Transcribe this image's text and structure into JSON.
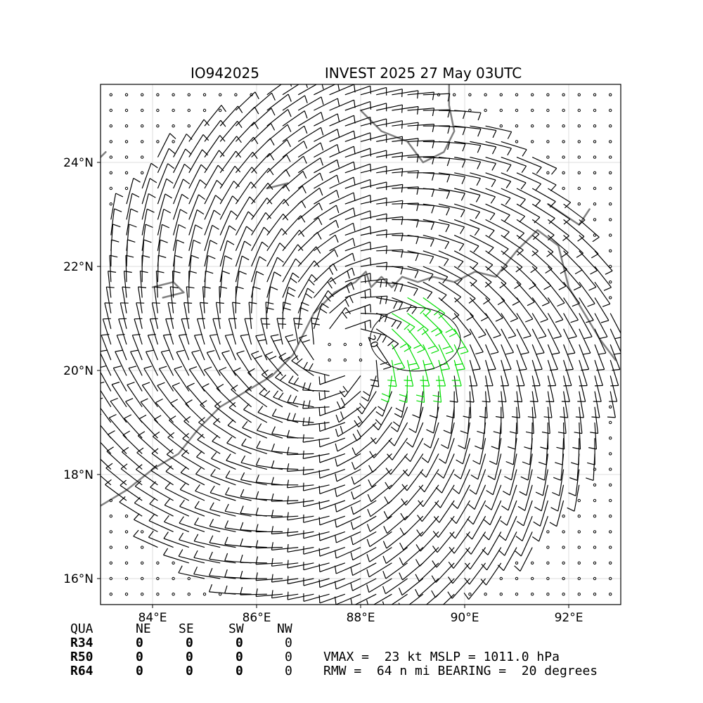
{
  "header": {
    "storm_id": "IO942025",
    "storm_title": "INVEST 2025 27 May 03UTC"
  },
  "chart_data": {
    "type": "wind-barb-map",
    "lon_range": [
      83.0,
      93.0
    ],
    "lat_range": [
      15.5,
      25.5
    ],
    "x_ticks": [
      {
        "value": 84,
        "label": "84°E"
      },
      {
        "value": 86,
        "label": "86°E"
      },
      {
        "value": 88,
        "label": "88°E"
      },
      {
        "value": 90,
        "label": "90°E"
      },
      {
        "value": 92,
        "label": "92°E"
      }
    ],
    "y_ticks": [
      {
        "value": 16,
        "label": "16°N"
      },
      {
        "value": 18,
        "label": "18°N"
      },
      {
        "value": 20,
        "label": "20°N"
      },
      {
        "value": 22,
        "label": "22°N"
      },
      {
        "value": 24,
        "label": "24°N"
      }
    ],
    "grid": true,
    "circulation_center": {
      "lon": 87.7,
      "lat": 20.35
    },
    "wind_field_extent_deg": 5.2,
    "barb_spacing_deg": 0.3,
    "max_wind_kt": 23,
    "contour": {
      "label": "20",
      "center": {
        "lon": 89.05,
        "lat": 20.6
      },
      "radius_deg": 0.85
    },
    "colors": {
      "barb": "#000000",
      "strong_barb": "#00dd00",
      "coastline": "#808080",
      "grid": "#dddddd"
    },
    "coastlines": [
      [
        [
          83.0,
          17.4
        ],
        [
          83.5,
          17.7
        ],
        [
          84.0,
          18.1
        ],
        [
          84.5,
          18.4
        ],
        [
          84.9,
          18.9
        ],
        [
          85.3,
          19.3
        ],
        [
          85.8,
          19.6
        ],
        [
          86.3,
          19.9
        ],
        [
          86.7,
          20.3
        ],
        [
          86.9,
          20.7
        ],
        [
          87.1,
          21.1
        ],
        [
          87.5,
          21.5
        ],
        [
          87.9,
          21.7
        ],
        [
          88.1,
          21.9
        ],
        [
          88.2,
          21.6
        ],
        [
          88.4,
          21.8
        ],
        [
          88.6,
          21.6
        ],
        [
          88.8,
          21.8
        ],
        [
          89.1,
          21.7
        ],
        [
          89.4,
          21.8
        ],
        [
          89.8,
          21.7
        ],
        [
          90.2,
          21.9
        ],
        [
          90.6,
          21.8
        ],
        [
          91.0,
          22.3
        ],
        [
          91.4,
          22.7
        ],
        [
          91.8,
          22.4
        ],
        [
          92.0,
          21.6
        ],
        [
          92.3,
          21.1
        ],
        [
          92.6,
          20.6
        ],
        [
          92.9,
          20.2
        ]
      ],
      [
        [
          88.0,
          25.0
        ],
        [
          88.4,
          24.6
        ],
        [
          88.9,
          24.4
        ],
        [
          89.2,
          24.0
        ],
        [
          89.6,
          24.2
        ],
        [
          89.8,
          24.6
        ],
        [
          89.7,
          25.1
        ],
        [
          89.7,
          25.5
        ]
      ],
      [
        [
          83.0,
          24.1
        ],
        [
          83.1,
          24.2
        ]
      ],
      [
        [
          84.0,
          21.6
        ],
        [
          84.4,
          21.7
        ],
        [
          84.6,
          21.5
        ],
        [
          84.2,
          21.4
        ]
      ],
      [
        [
          91.6,
          23.2
        ],
        [
          91.9,
          23.0
        ],
        [
          92.2,
          22.8
        ],
        [
          92.4,
          23.1
        ]
      ],
      [
        [
          86.2,
          23.5
        ],
        [
          86.6,
          23.6
        ]
      ]
    ]
  },
  "table": {
    "header": [
      "QUA",
      "NE",
      "SE",
      "SW",
      "NW"
    ],
    "rows": [
      [
        "R34",
        "0",
        "0",
        "0",
        "0"
      ],
      [
        "R50",
        "0",
        "0",
        "0",
        "0"
      ],
      [
        "R64",
        "0",
        "0",
        "0",
        "0"
      ]
    ]
  },
  "summary": {
    "line1": "VMAX =  23 kt MSLP = 1011.0 hPa",
    "line2": "RMW =  64 n mi BEARING =  20 degrees"
  }
}
